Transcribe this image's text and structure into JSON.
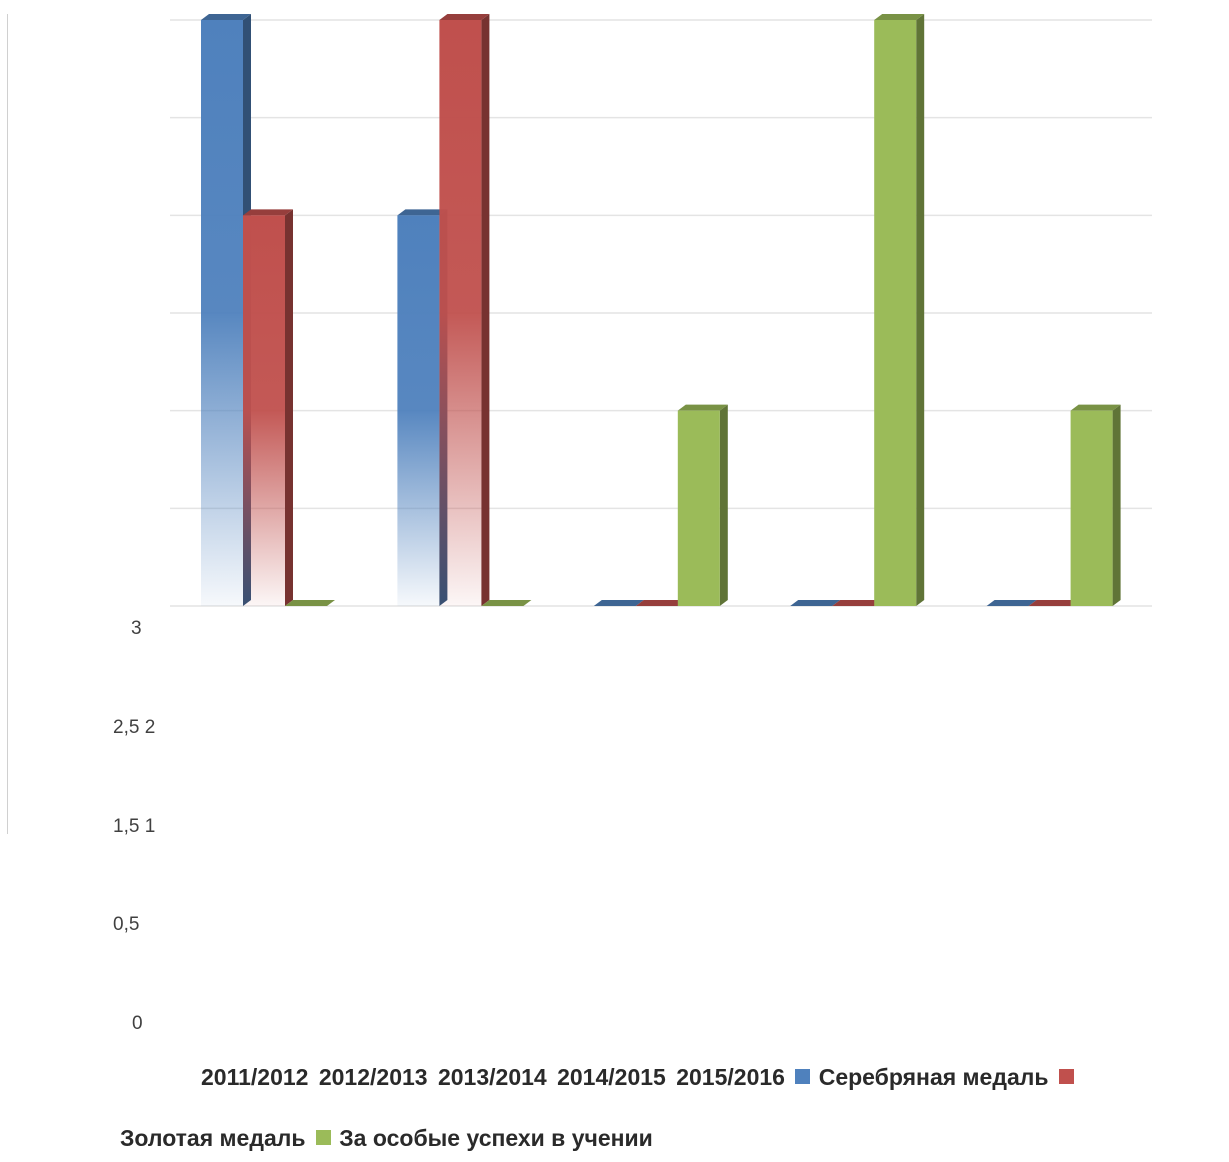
{
  "chart_data": {
    "type": "bar",
    "categories": [
      "2011/2012",
      "2012/2013",
      "2013/2014",
      "2014/2015",
      "2015/2016"
    ],
    "series": [
      {
        "name": "Серебряная медаль",
        "values": [
          3,
          2,
          0,
          0,
          0
        ],
        "color": "#4F81BD"
      },
      {
        "name": "Золотая медаль",
        "values": [
          2,
          3,
          0,
          0,
          0
        ],
        "color": "#C0504D"
      },
      {
        "name": "За особые успехи в учении",
        "values": [
          0,
          0,
          1,
          3,
          1
        ],
        "color": "#9BBB59"
      }
    ],
    "ylim": [
      0,
      3
    ],
    "grid": true,
    "legend_position": "bottom",
    "ytick_labels": [
      "3",
      "2,5 2",
      "1,5 1",
      "0,5",
      "0"
    ]
  }
}
